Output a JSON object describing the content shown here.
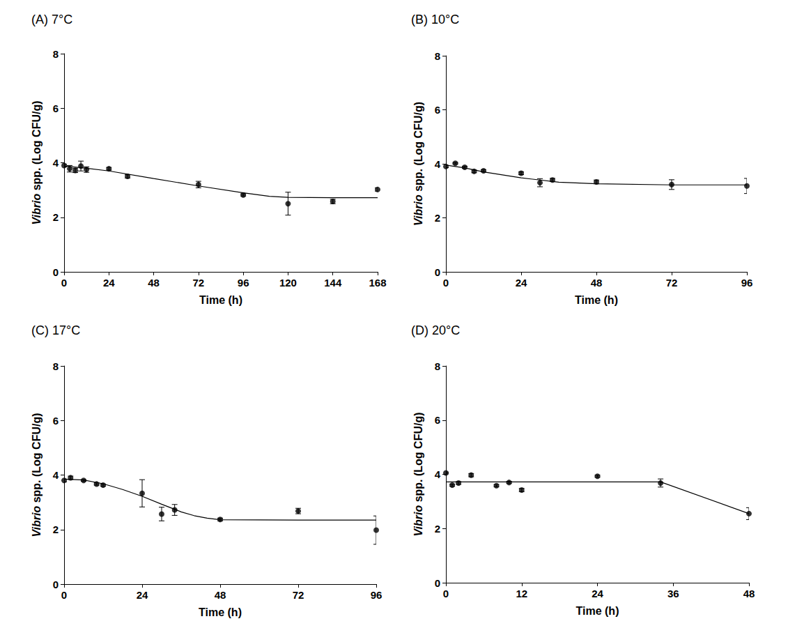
{
  "chart_data": [
    {
      "type": "scatter",
      "title": "(A) 7°C",
      "x_label": "Time (h)",
      "y_label": "Vibrio spp. (Log CFU/g)",
      "xlim": [
        0,
        168
      ],
      "xticks": [
        0,
        24,
        48,
        72,
        96,
        120,
        144,
        168
      ],
      "ylim": [
        0,
        8
      ],
      "yticks": [
        0,
        2,
        4,
        6,
        8
      ],
      "grid": false,
      "color": "#000000",
      "marker": "circle",
      "line_style": "solid",
      "x": [
        0,
        3,
        6,
        9,
        12,
        24,
        34,
        72,
        96,
        120,
        144,
        168
      ],
      "values": [
        3.9,
        3.78,
        3.72,
        3.88,
        3.75,
        3.78,
        3.5,
        3.2,
        2.82,
        2.5,
        2.58,
        3.02
      ],
      "errors": [
        0.05,
        0.12,
        0.08,
        0.18,
        0.1,
        0.05,
        0.06,
        0.12,
        0.04,
        0.42,
        0.08,
        0.06
      ],
      "fit_x": [
        0,
        12,
        24,
        48,
        72,
        96,
        110,
        120,
        144,
        168
      ],
      "fit_values": [
        3.88,
        3.8,
        3.7,
        3.42,
        3.15,
        2.9,
        2.77,
        2.73,
        2.72,
        2.72
      ]
    },
    {
      "type": "scatter",
      "title": "(B) 10°C",
      "x_label": "Time (h)",
      "y_label": "Vibrio spp. (Log CFU/g)",
      "xlim": [
        0,
        96
      ],
      "xticks": [
        0,
        24,
        48,
        72,
        96
      ],
      "ylim": [
        0,
        8
      ],
      "yticks": [
        0,
        2,
        4,
        6,
        8
      ],
      "grid": false,
      "color": "#000000",
      "marker": "circle",
      "line_style": "solid",
      "x": [
        0,
        3,
        6,
        9,
        12,
        24,
        30,
        34,
        48,
        72,
        96
      ],
      "values": [
        3.9,
        4.02,
        3.87,
        3.72,
        3.74,
        3.65,
        3.3,
        3.4,
        3.33,
        3.23,
        3.18
      ],
      "errors": [
        0.04,
        0.03,
        0.04,
        0.05,
        0.04,
        0.05,
        0.15,
        0.06,
        0.07,
        0.18,
        0.28
      ],
      "fit_x": [
        0,
        6,
        12,
        24,
        36,
        48,
        72,
        96
      ],
      "fit_values": [
        3.95,
        3.85,
        3.7,
        3.48,
        3.32,
        3.26,
        3.22,
        3.22
      ]
    },
    {
      "type": "scatter",
      "title": "(C) 17°C",
      "x_label": "Time (h)",
      "y_label": "Vibrio spp. (Log CFU/g)",
      "xlim": [
        0,
        96
      ],
      "xticks": [
        0,
        24,
        48,
        72,
        96
      ],
      "ylim": [
        0,
        8
      ],
      "yticks": [
        0,
        2,
        4,
        6,
        8
      ],
      "grid": false,
      "color": "#000000",
      "marker": "circle",
      "line_style": "solid",
      "x": [
        0,
        2,
        6,
        10,
        12,
        24,
        30,
        34,
        48,
        72,
        96
      ],
      "values": [
        3.8,
        3.9,
        3.8,
        3.67,
        3.63,
        3.33,
        2.57,
        2.72,
        2.37,
        2.68,
        1.98
      ],
      "errors": [
        0.05,
        0.06,
        0.03,
        0.04,
        0.04,
        0.5,
        0.25,
        0.2,
        0.05,
        0.1,
        0.52
      ],
      "fit_x": [
        0,
        6,
        12,
        18,
        24,
        30,
        36,
        40,
        44,
        48,
        72,
        96
      ],
      "fit_values": [
        3.85,
        3.82,
        3.68,
        3.47,
        3.22,
        2.93,
        2.65,
        2.51,
        2.42,
        2.36,
        2.35,
        2.35
      ]
    },
    {
      "type": "scatter",
      "title": "(D) 20°C",
      "x_label": "Time (h)",
      "y_label": "Vibrio spp. (Log CFU/g)",
      "xlim": [
        0,
        48
      ],
      "xticks": [
        0,
        12,
        24,
        36,
        48
      ],
      "ylim": [
        0,
        8
      ],
      "yticks": [
        0,
        2,
        4,
        6,
        8
      ],
      "grid": false,
      "color": "#000000",
      "marker": "circle",
      "line_style": "solid",
      "x": [
        0,
        1,
        2,
        4,
        8,
        10,
        12,
        24,
        34,
        48
      ],
      "values": [
        4.05,
        3.6,
        3.68,
        3.97,
        3.58,
        3.7,
        3.42,
        3.93,
        3.68,
        2.55
      ],
      "errors": [
        0.03,
        0.04,
        0.05,
        0.06,
        0.04,
        0.04,
        0.06,
        0.04,
        0.15,
        0.22
      ],
      "fit_x": [
        0,
        34,
        48
      ],
      "fit_values": [
        3.72,
        3.72,
        2.55
      ]
    }
  ]
}
